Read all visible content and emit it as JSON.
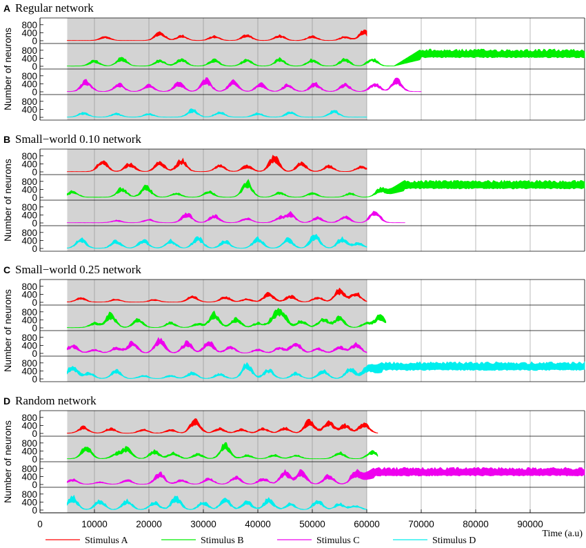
{
  "chart_data": {
    "type": "area",
    "x_tick_labels": [
      "0",
      "10000",
      "20000",
      "30000",
      "40000",
      "50000",
      "60000",
      "70000",
      "80000",
      "90000"
    ],
    "x_ticks": [
      0,
      10000,
      20000,
      30000,
      40000,
      50000,
      60000,
      70000,
      80000,
      90000
    ],
    "xlim": [
      0,
      100000
    ],
    "xlabel": "Time (a.u)",
    "ylabel": "Number of neurons",
    "ylim": [
      0,
      1000
    ],
    "y_tick_labels": [
      "0",
      "400",
      "800"
    ],
    "y_ticks": [
      0,
      400,
      800
    ],
    "stimulus_window": [
      5000,
      60000
    ],
    "stimulus_window_shading": "#d3d3d3",
    "grid": "vertical lines at x ticks",
    "legend_position": "bottom",
    "legend": [
      {
        "label": "Stimulus A",
        "color": "#ff0000"
      },
      {
        "label": "Stimulus B",
        "color": "#00ee00"
      },
      {
        "label": "Stimulus C",
        "color": "#ee00ee"
      },
      {
        "label": "Stimulus D",
        "color": "#00eeee"
      }
    ],
    "panels": [
      {
        "letter": "A",
        "title": "Regular network",
        "traces": [
          {
            "series": "Stimulus A",
            "end": 60000,
            "bursts": [
              [
                12000,
                200
              ],
              [
                22000,
                420
              ],
              [
                26000,
                250
              ],
              [
                32000,
                220
              ],
              [
                38000,
                300
              ],
              [
                44000,
                260
              ],
              [
                50000,
                230
              ],
              [
                56000,
                200
              ],
              [
                59500,
                480
              ]
            ]
          },
          {
            "series": "Stimulus B",
            "end": 100000,
            "steady_from": 70000,
            "steady_level": [
              420,
              860
            ],
            "bursts": [
              [
                10000,
                280
              ],
              [
                15000,
                420
              ],
              [
                22000,
                300
              ],
              [
                26000,
                350
              ],
              [
                32000,
                320
              ],
              [
                38000,
                350
              ],
              [
                44000,
                380
              ],
              [
                50000,
                330
              ],
              [
                56000,
                360
              ],
              [
                61000,
                380
              ]
            ]
          },
          {
            "series": "Stimulus C",
            "end": 70000,
            "bursts": [
              [
                8500,
                560
              ],
              [
                14500,
                400
              ],
              [
                20000,
                350
              ],
              [
                25500,
                450
              ],
              [
                30500,
                620
              ],
              [
                35500,
                520
              ],
              [
                40500,
                400
              ],
              [
                45500,
                350
              ],
              [
                50500,
                420
              ],
              [
                56000,
                380
              ],
              [
                61500,
                420
              ],
              [
                65500,
                600
              ]
            ]
          },
          {
            "series": "Stimulus D",
            "end": 60000,
            "bursts": [
              [
                8000,
                230
              ],
              [
                14000,
                180
              ],
              [
                20000,
                170
              ],
              [
                28000,
                380
              ],
              [
                33000,
                260
              ],
              [
                40000,
                200
              ],
              [
                46000,
                250
              ],
              [
                54000,
                320
              ]
            ]
          }
        ]
      },
      {
        "letter": "B",
        "title": "Small−world 0.10 network",
        "traces": [
          {
            "series": "Stimulus A",
            "end": 60000,
            "bursts": [
              [
                11500,
                560
              ],
              [
                16500,
                420
              ],
              [
                22000,
                480
              ],
              [
                26000,
                600
              ],
              [
                33000,
                350
              ],
              [
                38000,
                300
              ],
              [
                43000,
                780
              ],
              [
                48000,
                450
              ],
              [
                53000,
                300
              ],
              [
                59000,
                280
              ]
            ]
          },
          {
            "series": "Stimulus B",
            "end": 100000,
            "steady_from": 67000,
            "steady_level": [
              420,
              860
            ],
            "bursts": [
              [
                6000,
                300
              ],
              [
                15000,
                450
              ],
              [
                19500,
                550
              ],
              [
                25000,
                200
              ],
              [
                31000,
                300
              ],
              [
                38000,
                800
              ],
              [
                44000,
                250
              ],
              [
                50000,
                220
              ],
              [
                57000,
                200
              ],
              [
                62500,
                420
              ]
            ]
          },
          {
            "series": "Stimulus C",
            "end": 67000,
            "bursts": [
              [
                14000,
                120
              ],
              [
                20000,
                170
              ],
              [
                27000,
                480
              ],
              [
                32000,
                370
              ],
              [
                38000,
                240
              ],
              [
                44000,
                250
              ],
              [
                46000,
                470
              ],
              [
                51000,
                270
              ],
              [
                56000,
                330
              ],
              [
                61500,
                620
              ]
            ]
          },
          {
            "series": "Stimulus D",
            "end": 60000,
            "bursts": [
              [
                7500,
                480
              ],
              [
                14000,
                380
              ],
              [
                19000,
                420
              ],
              [
                24000,
                400
              ],
              [
                29000,
                560
              ],
              [
                34000,
                380
              ],
              [
                40000,
                520
              ],
              [
                45500,
                480
              ],
              [
                50500,
                690
              ],
              [
                55500,
                520
              ],
              [
                58500,
                280
              ]
            ]
          }
        ]
      },
      {
        "letter": "C",
        "title": "Small−world 0.25 network",
        "traces": [
          {
            "series": "Stimulus A",
            "end": 60000,
            "bursts": [
              [
                7500,
                220
              ],
              [
                14000,
                150
              ],
              [
                21000,
                130
              ],
              [
                28000,
                300
              ],
              [
                34000,
                270
              ],
              [
                38000,
                160
              ],
              [
                42000,
                450
              ],
              [
                46000,
                320
              ],
              [
                51000,
                260
              ],
              [
                55000,
                640
              ],
              [
                58000,
                480
              ]
            ]
          },
          {
            "series": "Stimulus B",
            "end": 63500,
            "bursts": [
              [
                10000,
                240
              ],
              [
                13000,
                700
              ],
              [
                18000,
                420
              ],
              [
                24000,
                260
              ],
              [
                29000,
                200
              ],
              [
                32000,
                720
              ],
              [
                36000,
                450
              ],
              [
                40000,
                240
              ],
              [
                43000,
                540
              ],
              [
                44500,
                730
              ],
              [
                48000,
                350
              ],
              [
                52000,
                480
              ],
              [
                55000,
                530
              ],
              [
                60000,
                240
              ],
              [
                62500,
                620
              ]
            ]
          },
          {
            "series": "Stimulus C",
            "end": 60000,
            "bursts": [
              [
                6000,
                420
              ],
              [
                10000,
                180
              ],
              [
                14000,
                300
              ],
              [
                17000,
                550
              ],
              [
                22000,
                720
              ],
              [
                27000,
                560
              ],
              [
                31000,
                580
              ],
              [
                35000,
                350
              ],
              [
                40000,
                200
              ],
              [
                44000,
                300
              ],
              [
                47000,
                560
              ],
              [
                51000,
                250
              ],
              [
                55000,
                320
              ],
              [
                58000,
                480
              ]
            ]
          },
          {
            "series": "Stimulus D",
            "end": 100000,
            "steady_from": 63000,
            "steady_level": [
              420,
              860
            ],
            "bursts": [
              [
                6000,
                680
              ],
              [
                9000,
                300
              ],
              [
                14000,
                420
              ],
              [
                19000,
                160
              ],
              [
                24000,
                160
              ],
              [
                28000,
                320
              ],
              [
                33000,
                240
              ],
              [
                38000,
                780
              ],
              [
                42000,
                480
              ],
              [
                47000,
                300
              ],
              [
                52000,
                420
              ],
              [
                57000,
                550
              ],
              [
                60500,
                620
              ]
            ]
          }
        ]
      },
      {
        "letter": "D",
        "title": "Random network",
        "traces": [
          {
            "series": "Stimulus A",
            "end": 62000,
            "bursts": [
              [
                8000,
                320
              ],
              [
                13000,
                250
              ],
              [
                19000,
                200
              ],
              [
                24000,
                180
              ],
              [
                28500,
                700
              ],
              [
                33000,
                250
              ],
              [
                37000,
                200
              ],
              [
                41000,
                250
              ],
              [
                45000,
                280
              ],
              [
                49500,
                650
              ],
              [
                53000,
                610
              ],
              [
                56000,
                430
              ],
              [
                59500,
                520
              ]
            ]
          },
          {
            "series": "Stimulus B",
            "end": 62000,
            "bursts": [
              [
                8500,
                620
              ],
              [
                14000,
                250
              ],
              [
                16000,
                520
              ],
              [
                21000,
                400
              ],
              [
                24500,
                300
              ],
              [
                29000,
                240
              ],
              [
                34000,
                730
              ],
              [
                38000,
                180
              ],
              [
                43000,
                200
              ],
              [
                47000,
                180
              ],
              [
                55000,
                320
              ],
              [
                61000,
                380
              ]
            ]
          },
          {
            "series": "Stimulus C",
            "end": 100000,
            "steady_from": 61500,
            "steady_level": [
              420,
              860
            ],
            "bursts": [
              [
                6000,
                250
              ],
              [
                11000,
                120
              ],
              [
                16000,
                220
              ],
              [
                22000,
                560
              ],
              [
                26000,
                220
              ],
              [
                31000,
                300
              ],
              [
                36000,
                380
              ],
              [
                41000,
                300
              ],
              [
                45000,
                650
              ],
              [
                48000,
                660
              ],
              [
                53000,
                450
              ],
              [
                58000,
                620
              ]
            ]
          },
          {
            "series": "Stimulus D",
            "end": 60000,
            "bursts": [
              [
                6000,
                650
              ],
              [
                11000,
                480
              ],
              [
                16000,
                480
              ],
              [
                21000,
                380
              ],
              [
                25000,
                630
              ],
              [
                30000,
                400
              ],
              [
                34000,
                590
              ],
              [
                38000,
                420
              ],
              [
                42000,
                550
              ],
              [
                46000,
                320
              ],
              [
                51000,
                480
              ],
              [
                55000,
                320
              ],
              [
                58000,
                220
              ]
            ]
          }
        ]
      }
    ]
  }
}
